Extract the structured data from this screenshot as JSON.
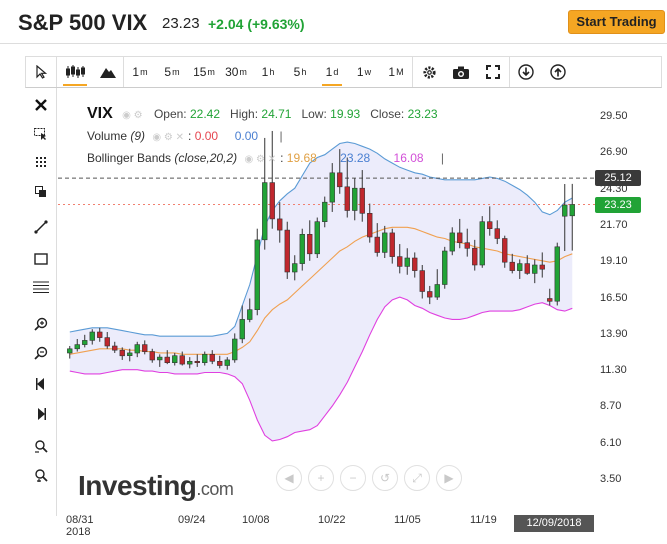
{
  "header": {
    "title": "S&P 500 VIX",
    "price": "23.23",
    "change": "+2.04 (+9.63%)",
    "trade_button": "Start Trading"
  },
  "toolbar": {
    "intervals": [
      {
        "label": "1",
        "sup": "m"
      },
      {
        "label": "5",
        "sup": "m"
      },
      {
        "label": "15",
        "sup": "m"
      },
      {
        "label": "30",
        "sup": "m"
      },
      {
        "label": "1",
        "sup": "h"
      },
      {
        "label": "5",
        "sup": "h"
      },
      {
        "label": "1",
        "sup": "d"
      },
      {
        "label": "1",
        "sup": "w"
      },
      {
        "label": "1",
        "sup": "M"
      }
    ],
    "active_interval": "1d"
  },
  "legend": {
    "symbol": "VIX",
    "open_label": "Open:",
    "open": "22.42",
    "high_label": "High:",
    "high": "24.71",
    "low_label": "Low:",
    "low": "19.93",
    "close_label": "Close:",
    "close": "23.23",
    "volume_label": "Volume",
    "volume_param": "(9)",
    "volume_v1": "0.00",
    "volume_v2": "0.00",
    "bb_label": "Bollinger Bands",
    "bb_param": "(close,20,2)",
    "bb_v1": "19.68",
    "bb_v2": "23.28",
    "bb_v3": "16.08"
  },
  "y_axis": {
    "labels": [
      "29.50",
      "26.90",
      "24.30",
      "21.70",
      "19.10",
      "16.50",
      "13.90",
      "11.30",
      "8.70",
      "6.10",
      "3.50"
    ]
  },
  "price_tags": {
    "crosshair": "25.12",
    "last": "23.23"
  },
  "x_axis": {
    "labels": [
      {
        "t": "08/31",
        "sub": "2018"
      },
      {
        "t": "09/24"
      },
      {
        "t": "10/08"
      },
      {
        "t": "10/22"
      },
      {
        "t": "11/05"
      },
      {
        "t": "11/19"
      }
    ],
    "crosshair_date": "12/09/2018"
  },
  "watermark": {
    "brand": "Investing",
    "suffix": ".com"
  },
  "colors": {
    "up": "#21a336",
    "down": "#c0272d",
    "upper_band": "#5b9bd5",
    "middle_band": "#f0a050",
    "lower_band": "#e040e0",
    "band_fill": "#e6e6fa",
    "trade": "#f5a623"
  },
  "chart_data": {
    "type": "candlestick",
    "y_range": [
      3.5,
      29.5
    ],
    "candles": [
      [
        12.6,
        13.1,
        12.2,
        12.9
      ],
      [
        12.9,
        13.6,
        12.7,
        13.2
      ],
      [
        13.2,
        13.9,
        13.0,
        13.5
      ],
      [
        13.5,
        14.3,
        13.2,
        14.1
      ],
      [
        14.1,
        14.4,
        13.4,
        13.7
      ],
      [
        13.7,
        14.1,
        12.9,
        13.1
      ],
      [
        13.1,
        13.4,
        12.6,
        12.8
      ],
      [
        12.8,
        13.0,
        12.1,
        12.4
      ],
      [
        12.4,
        12.9,
        12.0,
        12.6
      ],
      [
        12.6,
        13.4,
        12.3,
        13.2
      ],
      [
        13.2,
        13.5,
        12.5,
        12.7
      ],
      [
        12.7,
        12.9,
        11.9,
        12.1
      ],
      [
        12.1,
        12.5,
        11.6,
        12.3
      ],
      [
        12.3,
        12.8,
        11.8,
        11.9
      ],
      [
        11.9,
        12.6,
        11.7,
        12.4
      ],
      [
        12.4,
        12.7,
        11.7,
        11.8
      ],
      [
        11.8,
        12.3,
        11.5,
        12.0
      ],
      [
        12.0,
        12.5,
        11.6,
        11.9
      ],
      [
        11.9,
        12.7,
        11.7,
        12.5
      ],
      [
        12.5,
        12.8,
        11.8,
        12.0
      ],
      [
        12.0,
        12.4,
        11.5,
        11.7
      ],
      [
        11.7,
        12.3,
        11.4,
        12.1
      ],
      [
        12.1,
        14.0,
        11.9,
        13.6
      ],
      [
        13.6,
        16.0,
        13.3,
        15.0
      ],
      [
        15.0,
        16.5,
        14.8,
        15.7
      ],
      [
        15.7,
        21.5,
        15.3,
        20.7
      ],
      [
        20.7,
        28.0,
        20.0,
        24.8
      ],
      [
        24.8,
        28.5,
        21.5,
        22.2
      ],
      [
        22.2,
        23.4,
        20.5,
        21.4
      ],
      [
        21.4,
        22.0,
        17.9,
        18.4
      ],
      [
        18.4,
        19.6,
        17.8,
        19.0
      ],
      [
        19.0,
        21.5,
        18.5,
        21.1
      ],
      [
        21.1,
        22.1,
        19.2,
        19.7
      ],
      [
        19.7,
        22.3,
        19.4,
        22.0
      ],
      [
        22.0,
        23.8,
        21.6,
        23.4
      ],
      [
        23.4,
        26.2,
        22.7,
        25.5
      ],
      [
        25.5,
        27.2,
        24.0,
        24.5
      ],
      [
        24.5,
        26.6,
        22.3,
        22.8
      ],
      [
        22.8,
        25.1,
        22.1,
        24.4
      ],
      [
        24.4,
        25.7,
        22.0,
        22.6
      ],
      [
        22.6,
        23.3,
        20.5,
        20.9
      ],
      [
        20.9,
        21.9,
        19.5,
        19.8
      ],
      [
        19.8,
        21.7,
        19.4,
        21.2
      ],
      [
        21.2,
        21.5,
        19.0,
        19.5
      ],
      [
        19.5,
        20.4,
        18.3,
        18.8
      ],
      [
        18.8,
        20.1,
        18.2,
        19.4
      ],
      [
        19.4,
        19.8,
        18.0,
        18.5
      ],
      [
        18.5,
        18.9,
        16.5,
        17.0
      ],
      [
        17.0,
        17.4,
        16.1,
        16.6
      ],
      [
        16.6,
        18.6,
        16.4,
        17.5
      ],
      [
        17.5,
        20.2,
        17.2,
        19.9
      ],
      [
        19.9,
        21.6,
        19.6,
        21.2
      ],
      [
        21.2,
        22.2,
        20.1,
        20.5
      ],
      [
        20.5,
        21.5,
        19.5,
        20.1
      ],
      [
        20.1,
        20.7,
        18.5,
        18.9
      ],
      [
        18.9,
        22.4,
        18.7,
        22.0
      ],
      [
        22.0,
        23.1,
        21.0,
        21.5
      ],
      [
        21.5,
        22.1,
        20.4,
        20.8
      ],
      [
        20.8,
        21.0,
        18.7,
        19.1
      ],
      [
        19.1,
        19.7,
        18.3,
        18.5
      ],
      [
        18.5,
        19.3,
        17.9,
        19.0
      ],
      [
        19.0,
        19.6,
        18.2,
        18.3
      ],
      [
        18.3,
        19.3,
        17.6,
        18.9
      ],
      [
        18.9,
        19.8,
        18.0,
        18.6
      ],
      [
        16.5,
        17.2,
        16.0,
        16.3
      ],
      [
        16.3,
        20.5,
        16.0,
        20.2
      ],
      [
        22.4,
        24.7,
        19.9,
        23.2
      ],
      [
        22.42,
        24.71,
        19.93,
        23.23
      ]
    ],
    "bollinger": {
      "upper": [
        14.1,
        14.2,
        14.3,
        14.4,
        14.4,
        14.4,
        14.3,
        14.2,
        14.1,
        14.0,
        13.9,
        13.9,
        13.8,
        13.8,
        13.8,
        13.8,
        13.8,
        13.8,
        13.8,
        13.8,
        13.9,
        14.0,
        14.5,
        16.0,
        17.5,
        19.6,
        21.7,
        22.8,
        23.5,
        24.0,
        24.4,
        25.3,
        26.2,
        26.6,
        26.8,
        27.2,
        27.6,
        27.7,
        27.6,
        27.4,
        27.2,
        26.9,
        26.5,
        26.2,
        25.9,
        25.7,
        25.5,
        25.4,
        25.2,
        25.1,
        25.0,
        25.0,
        25.0,
        25.0,
        25.0,
        25.1,
        25.2,
        25.1,
        24.9,
        24.6,
        24.3,
        23.9,
        23.4,
        22.7,
        22.5,
        22.8,
        23.4,
        23.7
      ],
      "middle": [
        12.5,
        12.6,
        12.7,
        12.8,
        12.9,
        12.9,
        12.9,
        12.9,
        12.8,
        12.8,
        12.7,
        12.7,
        12.6,
        12.6,
        12.6,
        12.5,
        12.5,
        12.5,
        12.5,
        12.5,
        12.5,
        12.5,
        12.7,
        13.0,
        13.4,
        14.2,
        15.1,
        15.7,
        16.1,
        16.4,
        16.9,
        17.4,
        17.9,
        18.4,
        18.9,
        19.4,
        19.9,
        20.2,
        20.6,
        20.9,
        21.1,
        21.3,
        21.5,
        21.6,
        21.6,
        21.6,
        21.5,
        21.3,
        21.1,
        20.9,
        20.8,
        20.6,
        20.5,
        20.4,
        20.2,
        20.1,
        20.0,
        19.9,
        19.7,
        19.6,
        19.5,
        19.4,
        19.3,
        19.2,
        19.1,
        19.2,
        19.5,
        19.7
      ],
      "lower": [
        11.3,
        11.2,
        11.1,
        11.1,
        11.1,
        11.2,
        11.3,
        11.4,
        11.4,
        11.4,
        11.3,
        11.3,
        11.2,
        11.2,
        11.1,
        11.1,
        11.1,
        11.1,
        11.2,
        11.2,
        11.2,
        11.1,
        10.9,
        10.4,
        9.2,
        7.8,
        6.7,
        6.3,
        6.4,
        6.6,
        6.9,
        7.0,
        7.1,
        7.4,
        8.1,
        8.8,
        9.6,
        10.5,
        11.6,
        12.7,
        13.9,
        15.0,
        15.9,
        16.4,
        16.6,
        16.4,
        16.0,
        15.8,
        15.5,
        15.3,
        15.1,
        15.0,
        15.0,
        15.1,
        15.3,
        15.5,
        15.6,
        15.6,
        15.6,
        15.6,
        15.7,
        15.9,
        16.1,
        16.2,
        16.0,
        15.7,
        15.6,
        15.8
      ]
    },
    "crosshair_value": 25.12,
    "last_value": 23.23
  }
}
